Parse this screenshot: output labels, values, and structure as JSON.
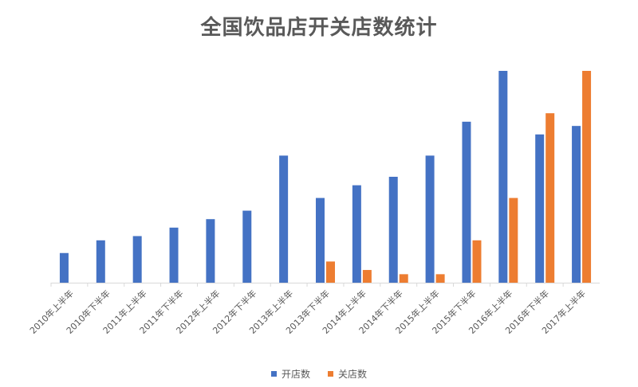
{
  "colors": {
    "open": "#4472C4",
    "close": "#ED7D31",
    "axis": "#D9D9D9",
    "tick_text": "#595959"
  },
  "chart_data": {
    "type": "bar",
    "title": "全国饮品店开关店数统计",
    "xlabel": "",
    "ylabel": "",
    "grid": false,
    "legend_position": "bottom",
    "categories": [
      "2010年上半年",
      "2010年下半年",
      "2011年上半年",
      "2011年下半年",
      "2012年上半年",
      "2012年下半年",
      "2013年上半年",
      "2013年下半年",
      "2014年上半年",
      "2014年下半年",
      "2015年上半年",
      "2015年下半年",
      "2016年上半年",
      "2016年下半年",
      "2017年上半年"
    ],
    "series": [
      {
        "name": "开店数",
        "values": [
          7,
          10,
          11,
          13,
          15,
          17,
          30,
          20,
          23,
          25,
          30,
          38,
          50,
          35,
          37
        ]
      },
      {
        "name": "关店数",
        "values": [
          0,
          0,
          0,
          0,
          0,
          0,
          0,
          5,
          3,
          2,
          2,
          10,
          20,
          40,
          50
        ]
      }
    ],
    "ylim": [
      0,
      50
    ]
  }
}
